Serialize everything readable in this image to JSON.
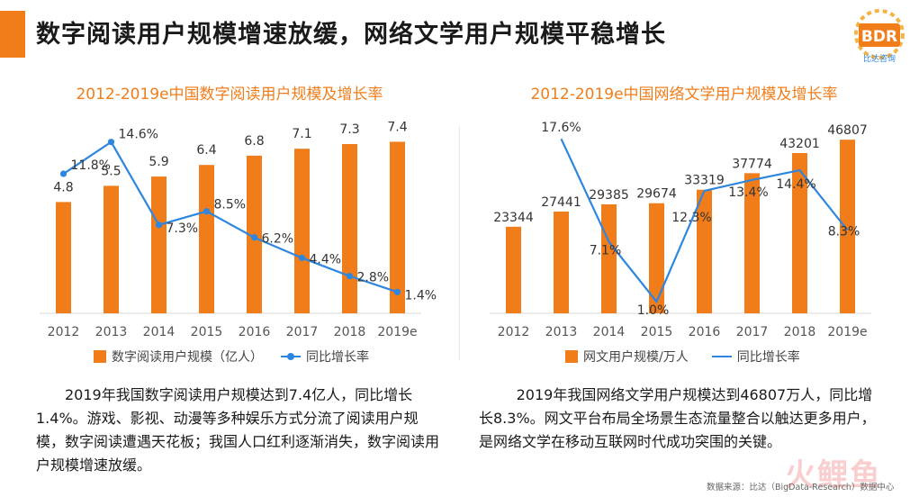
{
  "page": {
    "title": "数字阅读用户规模增速放缓，网络文学用户规模平稳增长",
    "accent_color": "#f07d1a",
    "logo_text": "BDR",
    "logo_subtext": "比达咨询",
    "source": "数据来源：比达（BigData-Research）数据中心",
    "watermark": "火鲤鱼"
  },
  "chart_data": [
    {
      "type": "bar",
      "title": "2012-2019e中国数字阅读用户规模及增长率",
      "categories": [
        "2012",
        "2013",
        "2014",
        "2015",
        "2016",
        "2017",
        "2018",
        "2019e"
      ],
      "series": [
        {
          "name": "数字阅读用户规模（亿人）",
          "type": "bar",
          "color": "#f07d1a",
          "values": [
            4.8,
            5.5,
            5.9,
            6.4,
            6.8,
            7.1,
            7.3,
            7.4
          ],
          "labels": [
            "4.8",
            "5.5",
            "5.9",
            "6.4",
            "6.8",
            "7.1",
            "7.3",
            "7.4"
          ]
        },
        {
          "name": "同比增长率",
          "type": "line",
          "color": "#2e86de",
          "markers": true,
          "values": [
            11.8,
            14.6,
            7.3,
            8.5,
            6.2,
            4.4,
            2.8,
            1.4
          ],
          "labels": [
            "11.8%",
            "14.6%",
            "7.3%",
            "8.5%",
            "6.2%",
            "4.4%",
            "2.8%",
            "1.4%"
          ]
        }
      ],
      "grid": false,
      "legend": "bottom"
    },
    {
      "type": "bar",
      "title": "2012-2019e中国网络文学用户规模及增长率",
      "categories": [
        "2012",
        "2013",
        "2014",
        "2015",
        "2016",
        "2017",
        "2018",
        "2019e"
      ],
      "series": [
        {
          "name": "网文用户规模/万人",
          "type": "bar",
          "color": "#f07d1a",
          "values": [
            23344,
            27441,
            29385,
            29674,
            33319,
            37774,
            43201,
            46807
          ],
          "labels": [
            "23344",
            "27441",
            "29385",
            "29674",
            "33319",
            "37774",
            "43201",
            "46807"
          ]
        },
        {
          "name": "同比增长率",
          "type": "line",
          "color": "#2e86de",
          "markers": false,
          "values": [
            null,
            17.6,
            7.1,
            1.0,
            12.3,
            13.4,
            14.4,
            8.3
          ],
          "labels": [
            "",
            "17.6%",
            "7.1%",
            "1.0%",
            "12.3%",
            "13.4%",
            "14.4%",
            "8.3%"
          ]
        }
      ],
      "grid": false,
      "legend": "bottom"
    }
  ],
  "descriptions": {
    "left": "2019年我国数字阅读用户规模达到7.4亿人，同比增长1.4%。游戏、影视、动漫等多种娱乐方式分流了阅读用户规模，数字阅读遭遇天花板；我国人口红利逐渐消失，数字阅读用户规模增速放缓。",
    "right": "2019年我国网络文学用户规模达到46807万人，同比增长8.3%。网文平台布局全场景生态流量整合以触达更多用户，是网络文学在移动互联网时代成功突围的关键。"
  }
}
